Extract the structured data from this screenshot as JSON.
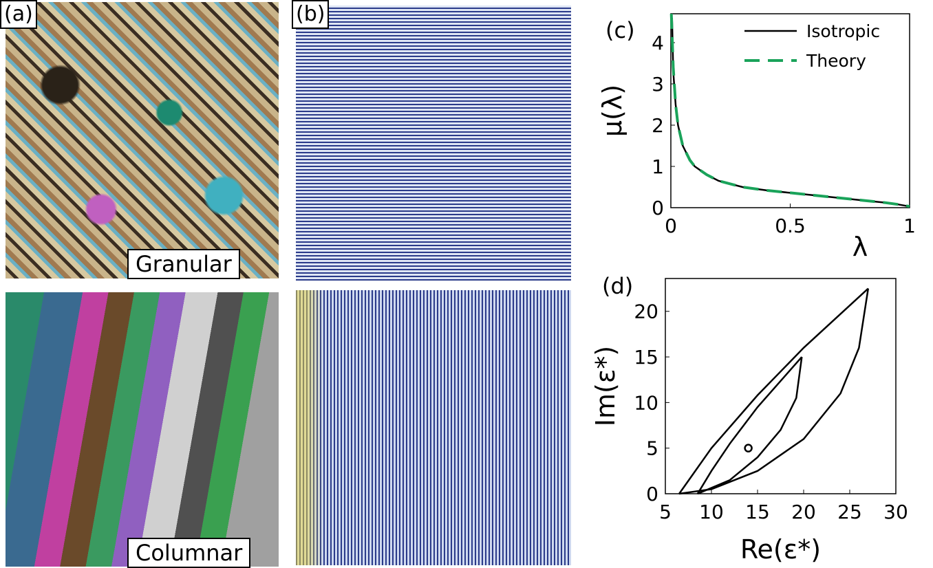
{
  "panels": {
    "a": {
      "label": "(a)",
      "captions": [
        "Granular",
        "Columnar"
      ]
    },
    "b": {
      "label": "(b)"
    }
  },
  "chart_data": [
    {
      "type": "line",
      "panel_label": "(c)",
      "x_label": "λ",
      "y_label": "μ(λ)",
      "xlim": [
        0,
        1
      ],
      "ylim": [
        0,
        4.7
      ],
      "xticks": [
        0,
        0.5,
        1
      ],
      "yticks": [
        0,
        1,
        2,
        3,
        4
      ],
      "legend": "upper-right",
      "series": [
        {
          "name": "Isotropic",
          "color": "#000000",
          "dash": false,
          "x": [
            0.005,
            0.01,
            0.02,
            0.03,
            0.05,
            0.08,
            0.1,
            0.15,
            0.2,
            0.3,
            0.4,
            0.5,
            0.6,
            0.7,
            0.8,
            0.9,
            0.95,
            1
          ],
          "values": [
            4.6,
            3.3,
            2.5,
            2.0,
            1.5,
            1.15,
            1.0,
            0.8,
            0.65,
            0.5,
            0.42,
            0.36,
            0.3,
            0.24,
            0.18,
            0.12,
            0.08,
            0.03
          ]
        },
        {
          "name": "Theory",
          "color": "#1aa35a",
          "dash": true,
          "x": [
            0.002,
            0.01,
            0.02,
            0.03,
            0.05,
            0.08,
            0.1,
            0.15,
            0.2,
            0.3,
            0.4,
            0.5,
            0.6,
            0.7,
            0.8,
            0.9,
            0.95,
            1
          ],
          "values": [
            4.7,
            3.4,
            2.5,
            2.0,
            1.5,
            1.15,
            1.0,
            0.8,
            0.65,
            0.5,
            0.42,
            0.36,
            0.3,
            0.24,
            0.18,
            0.12,
            0.08,
            0.03
          ]
        }
      ]
    },
    {
      "type": "line",
      "panel_label": "(d)",
      "x_label": "Re(ε*)",
      "y_label": "Im(ε*)",
      "xlim": [
        5,
        30
      ],
      "ylim": [
        0,
        23.6
      ],
      "xticks": [
        5,
        10,
        15,
        20,
        25,
        30
      ],
      "yticks": [
        0,
        5,
        10,
        15,
        20
      ],
      "series": [
        {
          "color": "#000000",
          "x": [
            6.5,
            10,
            15,
            20,
            27
          ],
          "values": [
            0,
            5,
            10.8,
            16,
            22.5
          ]
        },
        {
          "color": "#000000",
          "x": [
            6.5,
            10,
            15,
            20,
            24,
            26,
            27
          ],
          "values": [
            0,
            0.5,
            2.5,
            6,
            11,
            16,
            22.5
          ]
        },
        {
          "color": "#000000",
          "x": [
            8.5,
            10,
            12,
            15,
            19.8
          ],
          "values": [
            0,
            2.5,
            5.5,
            9.5,
            15
          ]
        },
        {
          "color": "#000000",
          "x": [
            8.5,
            12,
            15,
            17.5,
            19.2,
            19.8
          ],
          "values": [
            0,
            1.5,
            4,
            7,
            10.5,
            15
          ]
        }
      ],
      "markers": {
        "x": [
          14
        ],
        "values": [
          5
        ]
      }
    }
  ]
}
